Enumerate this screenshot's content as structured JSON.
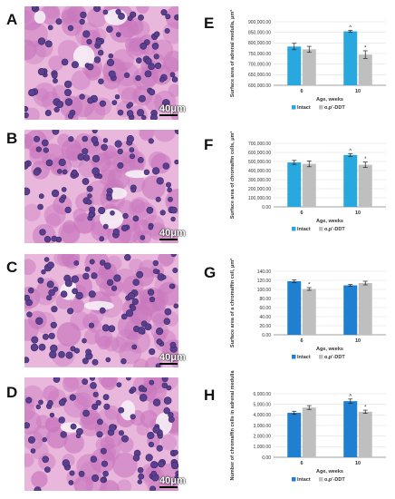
{
  "panels": {
    "A": "A",
    "B": "B",
    "C": "C",
    "D": "D",
    "E": "E",
    "F": "F",
    "G": "G",
    "H": "H"
  },
  "scale_label": "40μm",
  "colors": {
    "tissue_bg": "#e9b6dc",
    "cytoplasm": "#c978be",
    "nucleus": "#5a3f8f",
    "nucleus_dark": "#3a2866",
    "lumen": "#f6eef6"
  },
  "chart_data": [
    {
      "id": "E",
      "type": "bar",
      "ylabel": "Surface area of adrenal medulla, μm²",
      "xlabel": "Age, weeks",
      "categories": [
        "6",
        "10"
      ],
      "yticks": [
        "600,000.00",
        "650,000.00",
        "700,000.00",
        "750,000.00",
        "800,000.00",
        "850,000.00",
        "900,000.00"
      ],
      "ylim": [
        600000,
        900000
      ],
      "series": [
        {
          "name": "Intact",
          "color": "#29a8e0",
          "values": [
            783000,
            855000
          ],
          "errors": [
            15000,
            5000
          ],
          "marks": [
            "",
            "^"
          ]
        },
        {
          "name": "o,p'-DDT",
          "color": "#bfbfbf",
          "values": [
            770000,
            745000
          ],
          "errors": [
            14000,
            18000
          ],
          "marks": [
            "",
            "*"
          ]
        }
      ],
      "legend": [
        "Intact",
        "o,p'-DDT"
      ]
    },
    {
      "id": "F",
      "type": "bar",
      "ylabel": "Surface area of chromaffin cells, μm²",
      "xlabel": "Age, weeks",
      "categories": [
        "6",
        "10"
      ],
      "yticks": [
        "0.00",
        "100,000.00",
        "200,000.00",
        "300,000.00",
        "400,000.00",
        "500,000.00",
        "600,000.00",
        "700,000.00"
      ],
      "ylim": [
        0,
        700000
      ],
      "series": [
        {
          "name": "Intact",
          "color": "#29a8e0",
          "values": [
            490000,
            572000
          ],
          "errors": [
            22000,
            15000
          ],
          "marks": [
            "",
            "^"
          ]
        },
        {
          "name": "o,p'-DDT",
          "color": "#bfbfbf",
          "values": [
            474000,
            464000
          ],
          "errors": [
            32000,
            30000
          ],
          "marks": [
            "",
            "*"
          ]
        }
      ],
      "legend": [
        "Intact",
        "o,p'-DDT"
      ]
    },
    {
      "id": "G",
      "type": "bar",
      "ylabel": "Surface area of a chromaffin cell, μm²",
      "xlabel": "Age, weeks",
      "categories": [
        "6",
        "10"
      ],
      "yticks": [
        "0.00",
        "20.00",
        "40.00",
        "60.00",
        "80.00",
        "100.00",
        "120.00",
        "140.00"
      ],
      "ylim": [
        0,
        140
      ],
      "series": [
        {
          "name": "Intact",
          "color": "#1f7fd0",
          "values": [
            118,
            109
          ],
          "errors": [
            3,
            2
          ],
          "marks": [
            "",
            ""
          ]
        },
        {
          "name": "o,p'-DDT",
          "color": "#bfbfbf",
          "values": [
            101,
            114
          ],
          "errors": [
            3,
            4
          ],
          "marks": [
            "*",
            ""
          ]
        }
      ],
      "legend": [
        "Intact",
        "o,p'-DDT"
      ]
    },
    {
      "id": "H",
      "type": "bar",
      "ylabel": "Number of chromaffin cells in adrenal medulla",
      "xlabel": "Age, weeks",
      "categories": [
        "6",
        "10"
      ],
      "yticks": [
        "0.00",
        "1,000.00",
        "2,000.00",
        "3,000.00",
        "4,000.00",
        "5,000.00",
        "6,000.00"
      ],
      "ylim": [
        0,
        6000
      ],
      "series": [
        {
          "name": "Intact",
          "color": "#1f7fd0",
          "values": [
            4200,
            5300
          ],
          "errors": [
            150,
            200
          ],
          "marks": [
            "",
            "^"
          ]
        },
        {
          "name": "o,p'-DDT",
          "color": "#bfbfbf",
          "values": [
            4700,
            4300
          ],
          "errors": [
            180,
            150
          ],
          "marks": [
            "",
            "*"
          ]
        }
      ],
      "legend": [
        "Intact",
        "o,p'-DDT"
      ]
    }
  ]
}
